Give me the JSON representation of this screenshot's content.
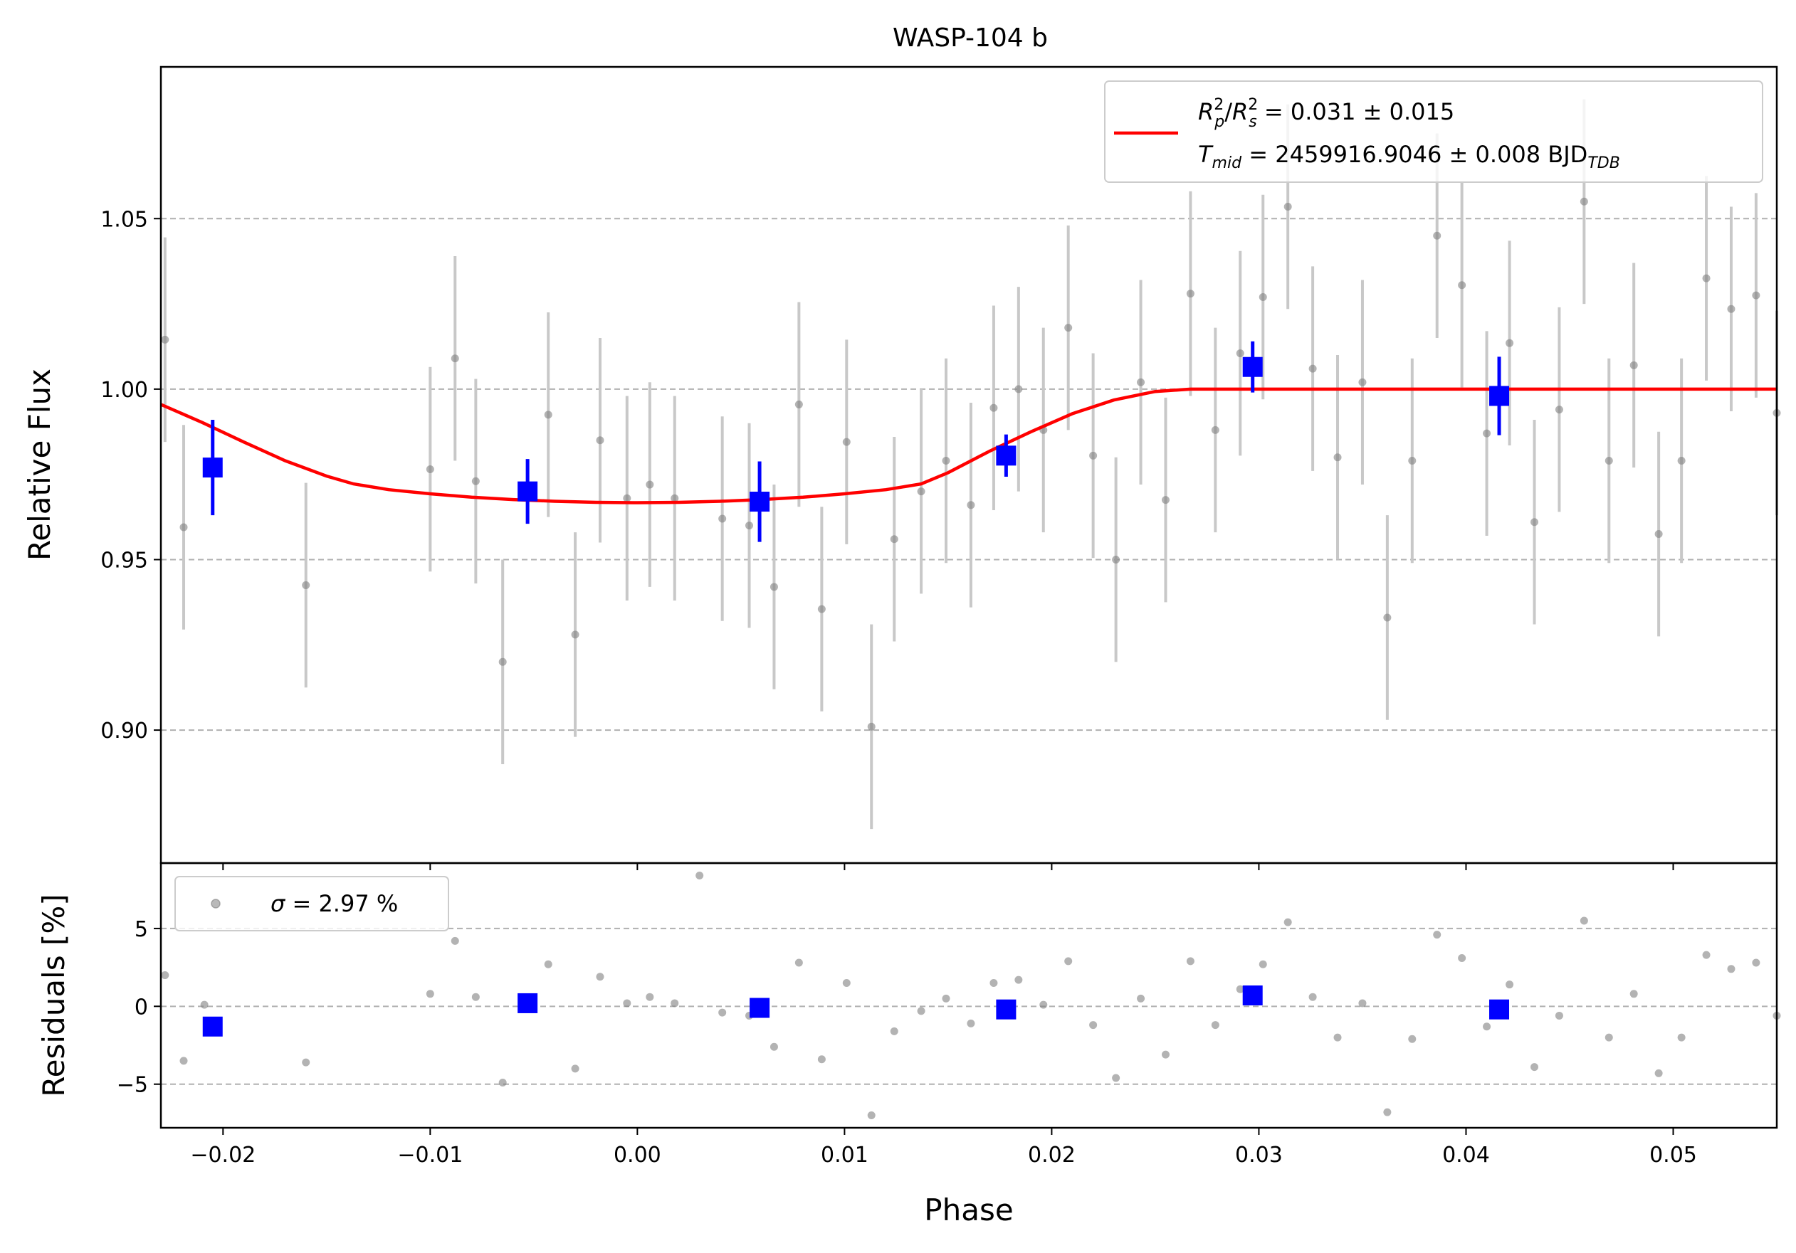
{
  "chart_data": [
    {
      "type": "scatter",
      "title": "WASP-104 b",
      "xlabel": "",
      "ylabel": "Relative Flux",
      "xlim": [
        -0.023,
        0.055
      ],
      "ylim": [
        0.861,
        1.0945
      ],
      "grid": "horizontal dashed",
      "xticks": [
        -0.02,
        -0.01,
        0.0,
        0.01,
        0.02,
        0.03,
        0.04,
        0.05
      ],
      "xtick_labels": [
        "−0.02",
        "−0.01",
        "0.00",
        "0.01",
        "0.02",
        "0.03",
        "0.04",
        "0.05"
      ],
      "yticks": [
        0.9,
        0.95,
        1.0,
        1.05
      ],
      "ytick_labels": [
        "0.90",
        "0.95",
        "1.00",
        "1.05"
      ],
      "legend": {
        "position": "top-right",
        "line1_prefix": "R",
        "line1_suffix": " = 0.031 ± 0.015",
        "line2_prefix": "T",
        "line2_sub": "mid",
        "line2_value": " = 2459916.9046 ± 0.008 BJD",
        "line2_unit_sub": "TDB",
        "sub_p": "p",
        "sub_s": "s",
        "sup_2": "2",
        "slash": "/"
      },
      "model": {
        "color": "#ff0000",
        "x": [
          -0.023,
          -0.021,
          -0.019,
          -0.017,
          -0.015,
          -0.0137,
          -0.012,
          -0.01,
          -0.008,
          -0.006,
          -0.004,
          -0.002,
          0.0,
          0.002,
          0.004,
          0.006,
          0.008,
          0.01,
          0.012,
          0.0137,
          0.015,
          0.017,
          0.019,
          0.021,
          0.023,
          0.025,
          0.0267,
          0.03,
          0.035,
          0.04,
          0.045,
          0.05,
          0.055
        ],
        "y": [
          0.9955,
          0.9902,
          0.9845,
          0.979,
          0.9745,
          0.9722,
          0.9705,
          0.9693,
          0.9683,
          0.9676,
          0.9671,
          0.9668,
          0.9667,
          0.9668,
          0.9671,
          0.9676,
          0.9683,
          0.9693,
          0.9705,
          0.9722,
          0.9755,
          0.9818,
          0.9875,
          0.9928,
          0.9968,
          0.9993,
          1.0,
          1.0,
          1.0,
          1.0,
          1.0,
          1.0,
          1.0
        ]
      },
      "data": {
        "color": "#808080",
        "errcolor": "#c8c8c8",
        "x": [
          -0.0228,
          -0.0219,
          -0.016,
          -0.01,
          -0.0088,
          -0.0078,
          -0.0065,
          -0.0043,
          -0.003,
          -0.0018,
          -0.0005,
          0.0006,
          0.0018,
          0.0041,
          0.0054,
          0.0066,
          0.0078,
          0.0089,
          0.0101,
          0.0113,
          0.0124,
          0.0137,
          0.0149,
          0.0161,
          0.0172,
          0.0184,
          0.0196,
          0.0208,
          0.022,
          0.0231,
          0.0243,
          0.0255,
          0.0267,
          0.0279,
          0.0291,
          0.0302,
          0.0314,
          0.0326,
          0.0338,
          0.035,
          0.0362,
          0.0374,
          0.0386,
          0.0398,
          0.041,
          0.0421,
          0.0433,
          0.0445,
          0.0457,
          0.0469,
          0.0481,
          0.0493,
          0.0504,
          0.0516,
          0.0528,
          0.054,
          0.055
        ],
        "y": [
          1.0145,
          0.9595,
          0.9425,
          0.9765,
          1.009,
          0.973,
          0.92,
          0.9925,
          0.928,
          0.985,
          0.968,
          0.972,
          0.968,
          0.962,
          0.96,
          0.942,
          0.9955,
          0.9355,
          0.9845,
          0.901,
          0.956,
          0.97,
          0.979,
          0.966,
          0.9945,
          1.0,
          0.988,
          1.018,
          0.9805,
          0.95,
          1.002,
          0.9675,
          1.028,
          0.988,
          1.0105,
          1.027,
          1.0535,
          1.006,
          0.98,
          1.002,
          0.933,
          0.979,
          1.045,
          1.0305,
          0.987,
          1.0135,
          0.961,
          0.994,
          1.055,
          0.979,
          1.007,
          0.9575,
          0.979,
          1.0325,
          1.0235,
          1.0275,
          0.993
        ],
        "yerr": 0.03
      },
      "binned": {
        "color": "#0000ff",
        "x": [
          -0.0205,
          -0.0053,
          0.0059,
          0.0178,
          0.0297,
          0.0416
        ],
        "y": [
          0.977,
          0.97,
          0.967,
          0.9805,
          1.0065,
          0.998
        ],
        "yerr": [
          0.014,
          0.0095,
          0.0118,
          0.0062,
          0.0075,
          0.0115
        ]
      }
    },
    {
      "type": "scatter",
      "title": "",
      "xlabel": "Phase",
      "ylabel": "Residuals [%]",
      "xlim": [
        -0.023,
        0.055
      ],
      "ylim": [
        -7.8,
        9.2
      ],
      "grid": "horizontal dashed",
      "yticks": [
        -5,
        0,
        5
      ],
      "ytick_labels": [
        "−5",
        "0",
        "5"
      ],
      "legend": {
        "position": "top-left",
        "symbol": "σ",
        "text": " = 2.97 %"
      },
      "data": {
        "color": "#808080",
        "x": [
          -0.0228,
          -0.0219,
          -0.0209,
          -0.016,
          -0.01,
          -0.0088,
          -0.0078,
          -0.0065,
          -0.0043,
          -0.003,
          -0.0018,
          -0.0005,
          0.0006,
          0.0018,
          0.003,
          0.0041,
          0.0054,
          0.0066,
          0.0078,
          0.0089,
          0.0101,
          0.0113,
          0.0124,
          0.0137,
          0.0149,
          0.0161,
          0.0172,
          0.0184,
          0.0196,
          0.0208,
          0.022,
          0.0231,
          0.0243,
          0.0255,
          0.0267,
          0.0279,
          0.0291,
          0.0302,
          0.0314,
          0.0326,
          0.0338,
          0.035,
          0.0362,
          0.0374,
          0.0386,
          0.0398,
          0.041,
          0.0421,
          0.0433,
          0.0445,
          0.0457,
          0.0469,
          0.0481,
          0.0493,
          0.0504,
          0.0516,
          0.0528,
          0.054,
          0.055
        ],
        "y": [
          2.0,
          -3.5,
          0.1,
          -3.6,
          0.8,
          4.2,
          0.6,
          -4.9,
          2.7,
          -4.0,
          1.9,
          0.2,
          0.6,
          0.2,
          8.4,
          -0.4,
          -0.6,
          -2.6,
          2.8,
          -3.4,
          1.5,
          -7.0,
          -1.6,
          -0.3,
          0.5,
          -1.1,
          1.5,
          1.7,
          0.1,
          2.9,
          -1.2,
          -4.6,
          0.5,
          -3.1,
          2.9,
          -1.2,
          1.1,
          2.7,
          5.4,
          0.6,
          -2.0,
          0.2,
          -6.8,
          -2.1,
          4.6,
          3.1,
          -1.3,
          1.4,
          -3.9,
          -0.6,
          5.5,
          -2.0,
          0.8,
          -4.3,
          -2.0,
          3.3,
          2.4,
          2.8,
          -0.6
        ]
      },
      "binned": {
        "color": "#0000ff",
        "x": [
          -0.0205,
          -0.0053,
          0.0059,
          0.0178,
          0.0297,
          0.0416
        ],
        "y": [
          -1.3,
          0.2,
          -0.1,
          -0.2,
          0.7,
          -0.2
        ]
      }
    }
  ]
}
